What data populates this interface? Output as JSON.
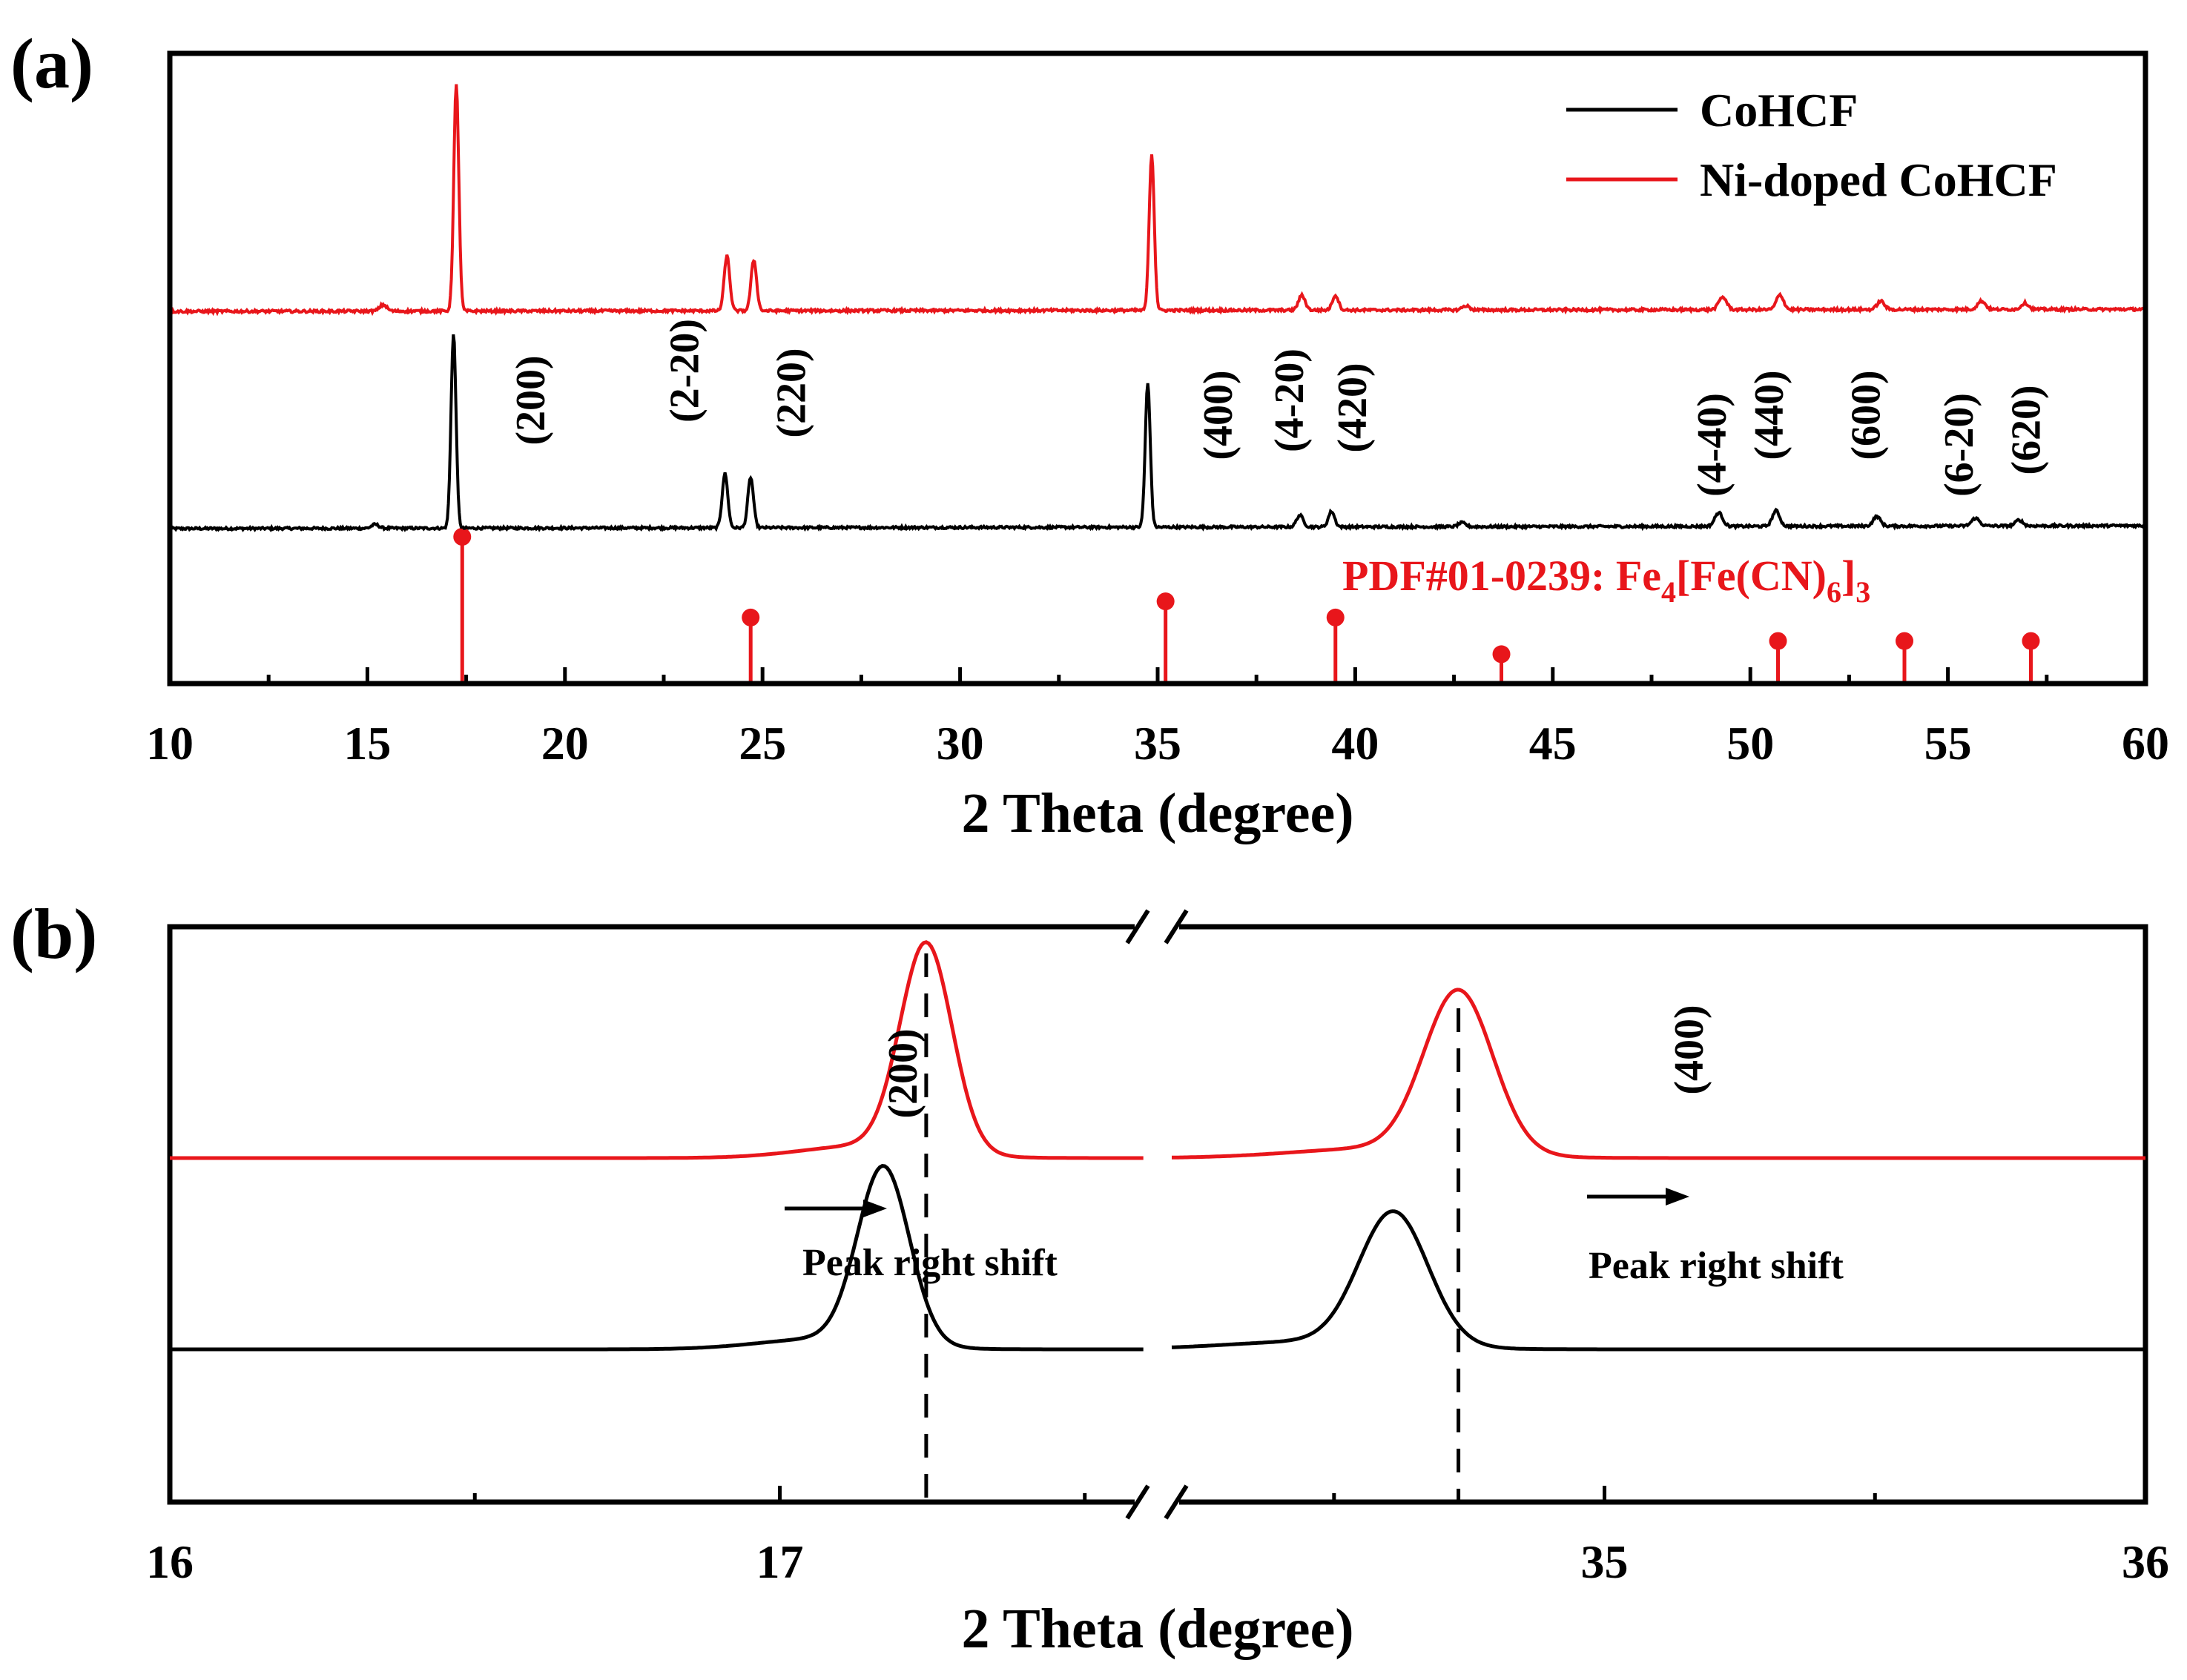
{
  "chart_data": [
    {
      "panel_label": "(a)",
      "type": "line",
      "xlabel": "2 Theta (degree)",
      "ylabel": "",
      "xlim": [
        10,
        60
      ],
      "xticks": [
        "10",
        "15",
        "20",
        "25",
        "30",
        "35",
        "40",
        "45",
        "50",
        "55",
        "60"
      ],
      "legend": {
        "position": "top-right",
        "entries": [
          "CoHCF",
          "Ni-doped CoHCF"
        ]
      },
      "colors": {
        "CoHCF": "#000000",
        "Ni-doped CoHCF": "#e8161b",
        "reference": "#e8161b"
      },
      "series": [
        {
          "name": "CoHCF",
          "offset": 0,
          "peaks": [
            {
              "x": 15.2,
              "h": 0.02,
              "w": 0.13
            },
            {
              "x": 17.18,
              "h": 1.0,
              "w": 0.09
            },
            {
              "x": 24.05,
              "h": 0.28,
              "w": 0.1
            },
            {
              "x": 24.7,
              "h": 0.26,
              "w": 0.1
            },
            {
              "x": 34.75,
              "h": 0.74,
              "w": 0.09
            },
            {
              "x": 38.6,
              "h": 0.06,
              "w": 0.12
            },
            {
              "x": 39.4,
              "h": 0.08,
              "w": 0.11
            },
            {
              "x": 42.7,
              "h": 0.02,
              "w": 0.13
            },
            {
              "x": 49.2,
              "h": 0.07,
              "w": 0.14
            },
            {
              "x": 50.65,
              "h": 0.08,
              "w": 0.13
            },
            {
              "x": 53.2,
              "h": 0.05,
              "w": 0.13
            },
            {
              "x": 55.7,
              "h": 0.04,
              "w": 0.14
            },
            {
              "x": 56.8,
              "h": 0.03,
              "w": 0.13
            }
          ]
        },
        {
          "name": "Ni-doped CoHCF",
          "offset": 1.0,
          "peaks": [
            {
              "x": 15.4,
              "h": 0.03,
              "w": 0.13
            },
            {
              "x": 17.25,
              "h": 1.07,
              "w": 0.09
            },
            {
              "x": 24.1,
              "h": 0.26,
              "w": 0.1
            },
            {
              "x": 24.78,
              "h": 0.24,
              "w": 0.1
            },
            {
              "x": 34.85,
              "h": 0.74,
              "w": 0.09
            },
            {
              "x": 38.65,
              "h": 0.07,
              "w": 0.12
            },
            {
              "x": 39.5,
              "h": 0.07,
              "w": 0.11
            },
            {
              "x": 42.8,
              "h": 0.02,
              "w": 0.13
            },
            {
              "x": 49.3,
              "h": 0.06,
              "w": 0.14
            },
            {
              "x": 50.75,
              "h": 0.07,
              "w": 0.13
            },
            {
              "x": 53.3,
              "h": 0.04,
              "w": 0.13
            },
            {
              "x": 55.85,
              "h": 0.04,
              "w": 0.14
            },
            {
              "x": 56.95,
              "h": 0.03,
              "w": 0.13
            }
          ]
        }
      ],
      "hkl_labels": [
        {
          "text": "(200)",
          "x": 19.1
        },
        {
          "text": "(2-20)",
          "x": 23.0
        },
        {
          "text": "(220)",
          "x": 25.7
        },
        {
          "text": "(400)",
          "x": 36.5
        },
        {
          "text": "(4-20)",
          "x": 38.3
        },
        {
          "text": "(420)",
          "x": 39.9
        },
        {
          "text": "(4-40)",
          "x": 49.0
        },
        {
          "text": "(440)",
          "x": 50.45
        },
        {
          "text": "(600)",
          "x": 52.9
        },
        {
          "text": "(6-20)",
          "x": 55.25
        },
        {
          "text": "(620)",
          "x": 56.95
        }
      ],
      "reference": {
        "label": "PDF#01-0239: Fe",
        "formula_parts": [
          "Fe",
          "4",
          "[Fe(CN)",
          "6",
          "]",
          "3"
        ],
        "sticks": [
          {
            "x": 17.4,
            "h": 1.0
          },
          {
            "x": 24.7,
            "h": 0.45
          },
          {
            "x": 35.2,
            "h": 0.56
          },
          {
            "x": 39.5,
            "h": 0.45
          },
          {
            "x": 43.7,
            "h": 0.2
          },
          {
            "x": 50.7,
            "h": 0.29
          },
          {
            "x": 53.9,
            "h": 0.29
          },
          {
            "x": 57.1,
            "h": 0.29
          }
        ]
      }
    },
    {
      "panel_label": "(b)",
      "type": "line",
      "xlabel": "2 Theta (degree)",
      "ylabel": "",
      "axis_break": true,
      "segments": [
        {
          "xlim": [
            16,
            17.6
          ],
          "ticks": [
            "16",
            "17"
          ]
        },
        {
          "xlim": [
            34.2,
            36
          ],
          "ticks": [
            "35",
            "36"
          ]
        }
      ],
      "series": [
        {
          "name": "Ni-doped CoHCF",
          "color": "#e8161b",
          "peaks": [
            {
              "x": 17.24,
              "h": 1.0,
              "w": 0.06
            },
            {
              "x": 34.73,
              "h": 0.78,
              "w": 0.09
            }
          ]
        },
        {
          "name": "CoHCF",
          "color": "#000000",
          "peaks": [
            {
              "x": 17.17,
              "h": 0.85,
              "w": 0.06
            },
            {
              "x": 34.61,
              "h": 0.64,
              "w": 0.09
            }
          ]
        }
      ],
      "reference_lines": [
        {
          "x": 17.24,
          "label": "(200)"
        },
        {
          "x": 34.73,
          "label": "(400)"
        }
      ],
      "annotations": [
        {
          "text": "Peak right shift",
          "near": 17.24
        },
        {
          "text": "Peak right shift",
          "near": 34.73
        }
      ]
    }
  ]
}
